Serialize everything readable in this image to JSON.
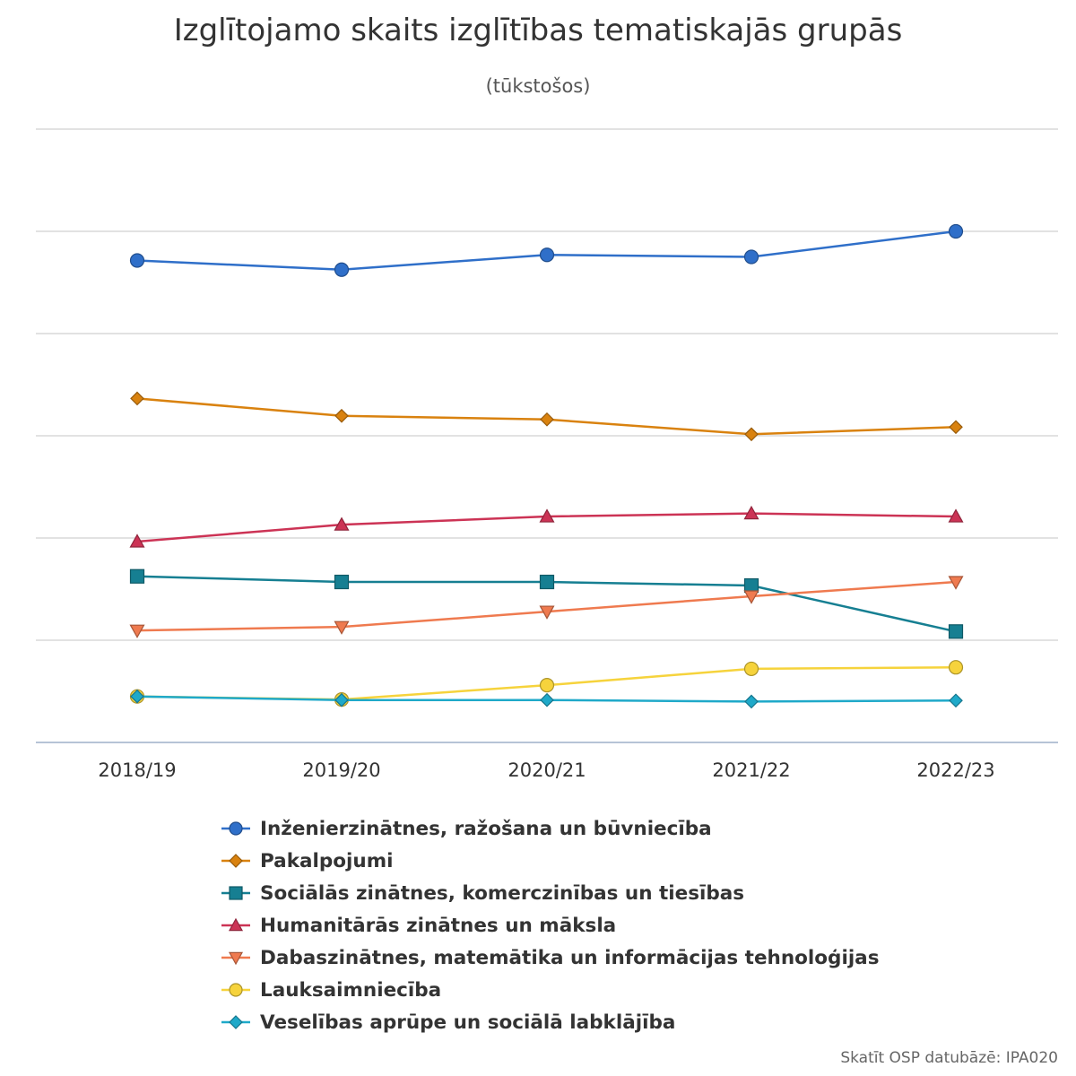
{
  "chart_data": {
    "type": "line",
    "title": "Izglītojamo skaits izglītības tematiskajās grupās",
    "subtitle": "(tūkstošos)",
    "categories": [
      "2018/19",
      "2019/20",
      "2020/21",
      "2021/22",
      "2022/23"
    ],
    "ylim": [
      0,
      12
    ],
    "y_gridlines": [
      0,
      2,
      4,
      6,
      8,
      10,
      12
    ],
    "y_tick_labels_visible": false,
    "grid": true,
    "legend_position": "bottom",
    "series": [
      {
        "name": "Inženierzinātnes, ražošana un būvniecība",
        "marker": "circle",
        "color": "#2f6fc9",
        "values": [
          9.43,
          9.25,
          9.54,
          9.5,
          10.0
        ]
      },
      {
        "name": "Pakalpojumi",
        "marker": "diamond",
        "color": "#d9820f",
        "values": [
          6.73,
          6.39,
          6.32,
          6.03,
          6.17
        ]
      },
      {
        "name": "Sociālās zinātnes, komerczinības un tiesības",
        "marker": "square",
        "color": "#167f92",
        "values": [
          3.25,
          3.14,
          3.14,
          3.07,
          2.17
        ]
      },
      {
        "name": "Humanitārās zinātnes un māksla",
        "marker": "triangle-up",
        "color": "#cc3355",
        "values": [
          3.93,
          4.26,
          4.42,
          4.48,
          4.42
        ]
      },
      {
        "name": "Dabaszinātnes, matemātika un informācijas tehnoloģijas",
        "marker": "triangle-down",
        "color": "#ef7a4f",
        "values": [
          2.19,
          2.26,
          2.56,
          2.86,
          3.14
        ]
      },
      {
        "name": "Lauksaimniecība",
        "marker": "circle",
        "color": "#f6d33c",
        "values": [
          0.9,
          0.84,
          1.12,
          1.44,
          1.47
        ]
      },
      {
        "name": "Veselības aprūpe un sociālā labklājība",
        "marker": "diamond",
        "color": "#1fa9c9",
        "values": [
          0.9,
          0.83,
          0.83,
          0.8,
          0.82
        ]
      }
    ]
  },
  "source_note": "Skatīt OSP datubāzē: IPA020"
}
